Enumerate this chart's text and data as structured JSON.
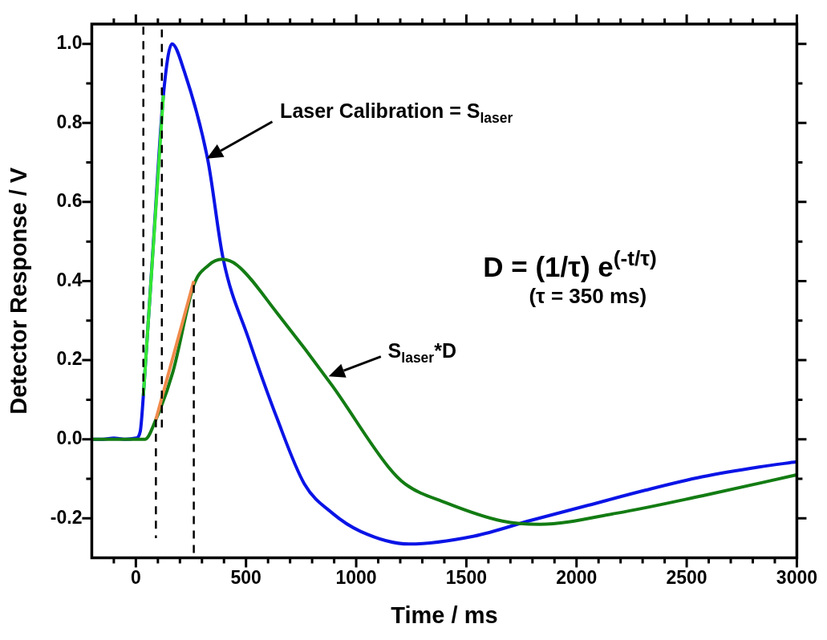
{
  "chart_data": {
    "type": "line",
    "xlabel": "Time / ms",
    "ylabel": "Detector Response / V",
    "xlim": [
      -200,
      3000
    ],
    "xticks": [
      {
        "value": -100,
        "label": null
      },
      0,
      {
        "value": 100,
        "label": null
      },
      {
        "value": 200,
        "label": null
      },
      {
        "value": 300,
        "label": null
      },
      {
        "value": 400,
        "label": null
      },
      500,
      {
        "value": 600,
        "label": null
      },
      {
        "value": 700,
        "label": null
      },
      {
        "value": 800,
        "label": null
      },
      {
        "value": 900,
        "label": null
      },
      1000,
      {
        "value": 1100,
        "label": null
      },
      {
        "value": 1200,
        "label": null
      },
      {
        "value": 1300,
        "label": null
      },
      {
        "value": 1400,
        "label": null
      },
      1500,
      {
        "value": 1600,
        "label": null
      },
      {
        "value": 1700,
        "label": null
      },
      {
        "value": 1800,
        "label": null
      },
      {
        "value": 1900,
        "label": null
      },
      2000,
      {
        "value": 2100,
        "label": null
      },
      {
        "value": 2200,
        "label": null
      },
      {
        "value": 2300,
        "label": null
      },
      {
        "value": 2400,
        "label": null
      },
      2500,
      {
        "value": 2600,
        "label": null
      },
      {
        "value": 2700,
        "label": null
      },
      {
        "value": 2800,
        "label": null
      },
      {
        "value": 2900,
        "label": null
      },
      3000
    ],
    "ylim": [
      -0.3,
      1.05
    ],
    "yticks": [
      -0.2,
      {
        "value": -0.1,
        "label": null
      },
      {
        "value": 0,
        "label": "0.0"
      },
      {
        "value": 0.1,
        "label": null
      },
      0.2,
      {
        "value": 0.3,
        "label": null
      },
      0.4,
      {
        "value": 0.5,
        "label": null
      },
      0.6,
      {
        "value": 0.7,
        "label": null
      },
      0.8,
      {
        "value": 0.9,
        "label": null
      },
      {
        "value": 1,
        "label": "1.0"
      }
    ],
    "marker": "none",
    "line_style": "solid",
    "series": [
      {
        "color": "#0a14e6",
        "x": [
          -200,
          -150,
          -100,
          -50,
          0,
          20,
          34,
          80,
          125,
          164,
          220,
          327,
          396,
          511,
          640,
          765,
          892,
          1020,
          1241,
          1535,
          1794,
          2053,
          2312,
          2570,
          2829,
          3000
        ],
        "values": [
          0,
          0,
          0.003,
          0,
          0.003,
          0.02,
          0.11,
          0.5,
          0.87,
          1.0,
          0.93,
          0.705,
          0.457,
          0.255,
          0.054,
          -0.113,
          -0.187,
          -0.233,
          -0.265,
          -0.245,
          -0.205,
          -0.167,
          -0.129,
          -0.095,
          -0.07,
          -0.057
        ]
      },
      {
        "color": "#137c13",
        "x": [
          -200,
          0,
          42,
          91,
          168,
          263,
          330,
          391,
          460,
          640,
          892,
          1146,
          1222,
          1405,
          1664,
          1832,
          2182,
          2570,
          3000
        ],
        "values": [
          0,
          0,
          0,
          0.05,
          0.17,
          0.39,
          0.44,
          0.455,
          0.44,
          0.32,
          0.135,
          -0.07,
          -0.113,
          -0.16,
          -0.207,
          -0.215,
          -0.187,
          -0.143,
          -0.09
        ]
      },
      {
        "color": "#33e633",
        "x": [
          34,
          125
        ],
        "values": [
          0.11,
          0.87
        ]
      },
      {
        "color": "#f08a4b",
        "x": [
          91,
          263
        ],
        "values": [
          0.05,
          0.4
        ]
      },
      {
        "color": "#000000",
        "line_style": "dashed",
        "x": [
          34,
          34
        ],
        "values": [
          0.11,
          1.05
        ]
      },
      {
        "color": "#000000",
        "line_style": "dashed",
        "x": [
          118,
          118
        ],
        "values": [
          0.03,
          1.05
        ]
      },
      {
        "color": "#000000",
        "line_style": "dashed",
        "x": [
          91,
          91
        ],
        "values": [
          0.05,
          -0.25
        ]
      },
      {
        "color": "#000000",
        "line_style": "dashed",
        "x": [
          263,
          263
        ],
        "values": [
          0.39,
          -0.3
        ]
      }
    ],
    "annotations": [
      "Laser Calibration = S$_{laser}$",
      "S$_{laser}$*D",
      "D = (1/τ) e$^{(-t/τ)}$",
      "(τ = 350 ms)"
    ]
  }
}
